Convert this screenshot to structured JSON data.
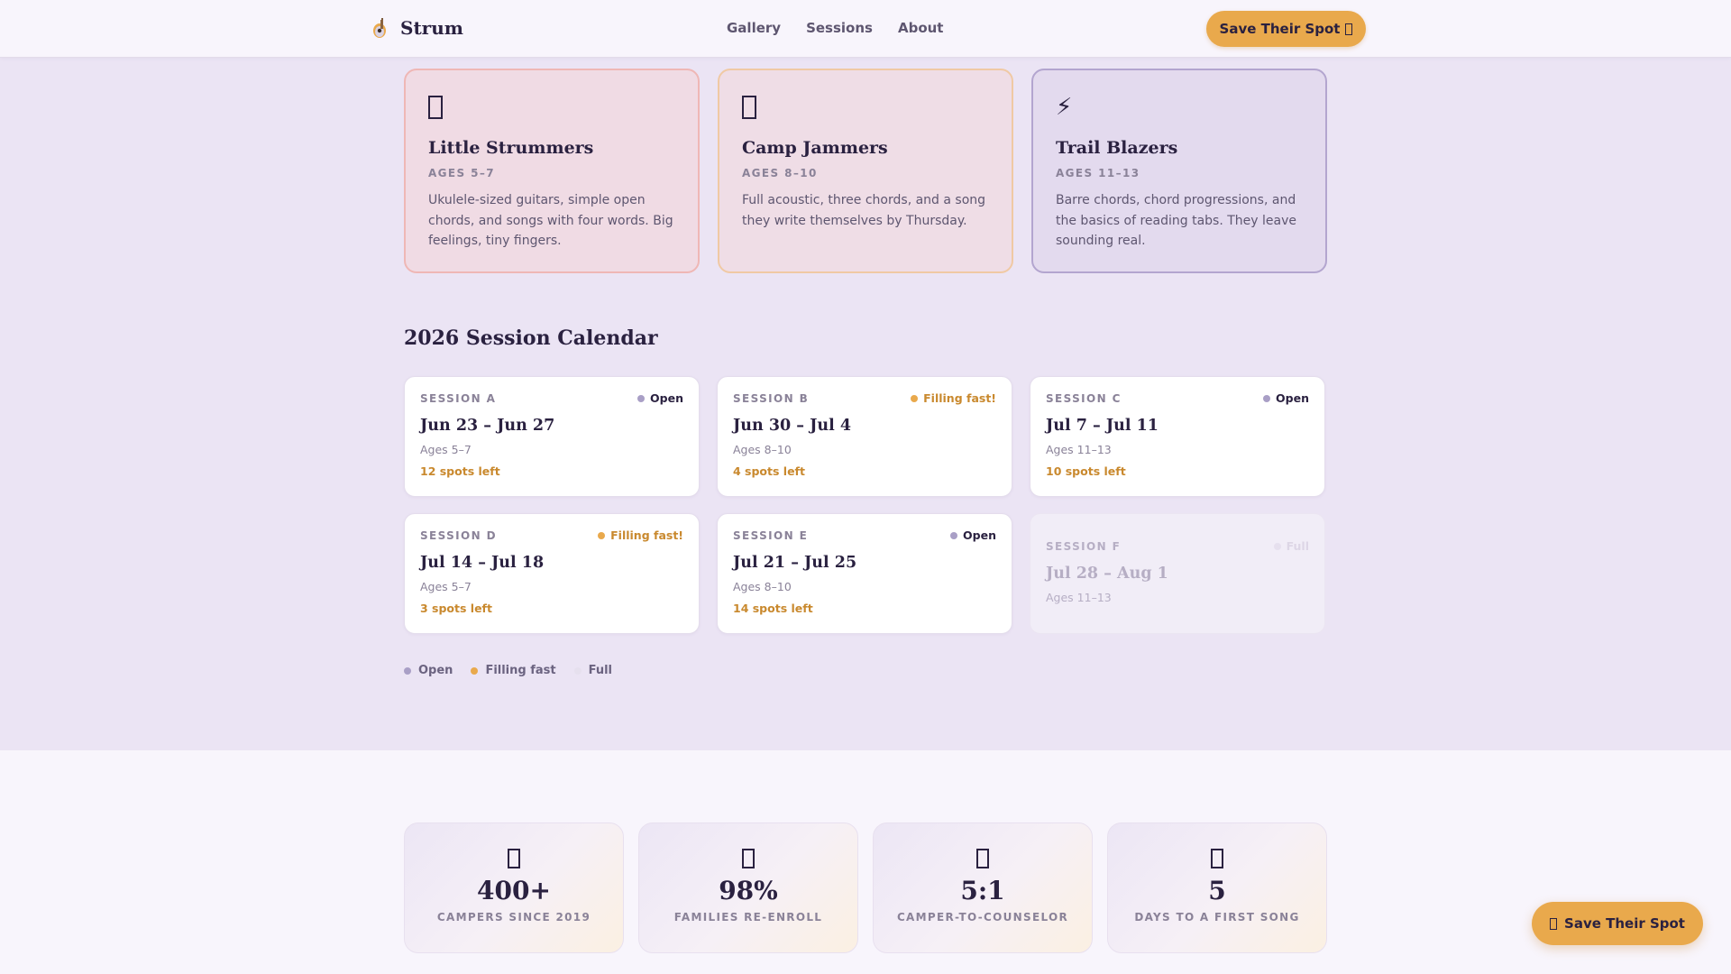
{
  "header": {
    "brand": "Strum",
    "brand_icon": "guitar-icon",
    "nav": [
      "Gallery",
      "Sessions",
      "About"
    ],
    "cta_label": "Save Their Spot"
  },
  "age_groups": [
    {
      "icon": "box-icon",
      "title": "Little Strummers",
      "ages": "AGES 5–7",
      "description": "Ukulele-sized guitars, simple open chords, and songs with four words. Big feelings, tiny fingers."
    },
    {
      "icon": "box-icon",
      "title": "Camp Jammers",
      "ages": "AGES 8–10",
      "description": "Full acoustic, three chords, and a song they write themselves by Thursday."
    },
    {
      "icon": "lightning-icon",
      "bolt": "⚡",
      "title": "Trail Blazers",
      "ages": "AGES 11–13",
      "description": "Barre chords, chord progressions, and the basics of reading tabs. They leave sounding real."
    }
  ],
  "calendar": {
    "title": "2026 Session Calendar",
    "sessions": [
      {
        "label": "SESSION A",
        "status": "Open",
        "dates": "Jun 23 – Jun 27",
        "ages": "Ages 5–7",
        "spots": "12 spots left"
      },
      {
        "label": "SESSION B",
        "status": "Filling fast!",
        "dates": "Jun 30 – Jul 4",
        "ages": "Ages 8–10",
        "spots": "4 spots left"
      },
      {
        "label": "SESSION C",
        "status": "Open",
        "dates": "Jul 7 – Jul 11",
        "ages": "Ages 11–13",
        "spots": "10 spots left"
      },
      {
        "label": "SESSION D",
        "status": "Filling fast!",
        "dates": "Jul 14 – Jul 18",
        "ages": "Ages 5–7",
        "spots": "3 spots left"
      },
      {
        "label": "SESSION E",
        "status": "Open",
        "dates": "Jul 21 – Jul 25",
        "ages": "Ages 8–10",
        "spots": "14 spots left"
      },
      {
        "label": "SESSION F",
        "status": "Full",
        "dates": "Jul 28 – Aug 1",
        "ages": "Ages 11–13",
        "spots": ""
      }
    ],
    "legend": [
      "Open",
      "Filling fast",
      "Full"
    ]
  },
  "stats": [
    {
      "value": "400+",
      "label": "CAMPERS SINCE 2019"
    },
    {
      "value": "98%",
      "label": "FAMILIES RE-ENROLL"
    },
    {
      "value": "5:1",
      "label": "CAMPER-TO-COUNSELOR"
    },
    {
      "value": "5",
      "label": "DAYS TO A FIRST SONG"
    }
  ],
  "floating_cta": {
    "label": "Save Their Spot"
  },
  "colors": {
    "accent": "#e9a94c",
    "open_dot": "#a99fc6",
    "filling_dot": "#e9a94c",
    "full_dot": "#e6e0ee",
    "filling_text": "#c9892e",
    "text_dark": "#2a2140"
  }
}
